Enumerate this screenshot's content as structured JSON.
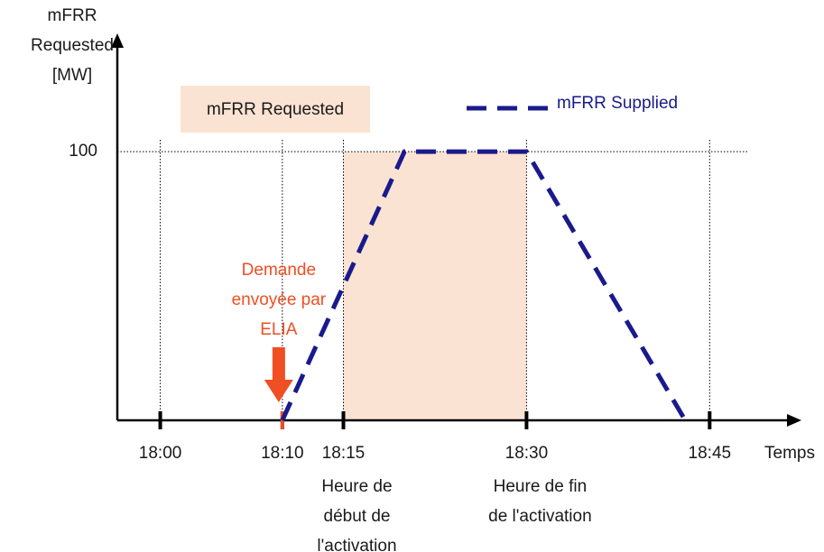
{
  "chart_data": {
    "type": "line",
    "x_label": "Temps",
    "y_label": [
      "mFRR",
      "Requested",
      "[MW]"
    ],
    "xlim": [
      "17:57",
      "18:52"
    ],
    "xticks": [
      "18:00",
      "18:10",
      "18:15",
      "18:30",
      "18:45"
    ],
    "ylim": [
      0,
      142
    ],
    "yticks": [
      100
    ],
    "grid": true,
    "series": [
      {
        "name": "mFRR Supplied",
        "color": "#1a1a8c",
        "x": [
          "18:10",
          "18:20",
          "18:30",
          "18:43"
        ],
        "values": [
          0,
          100,
          100,
          0
        ]
      }
    ],
    "band": {
      "name": "mFRR Requested",
      "color": "#fbe3d3",
      "x": [
        "18:15",
        "18:30"
      ],
      "value": 100
    },
    "annotations": [
      {
        "text": [
          "Demande",
          "envoyée par",
          "ELIA"
        ],
        "x": "18:10",
        "color": "#f04e23"
      },
      {
        "text": [
          "Heure de",
          "début de",
          "l'activation"
        ],
        "x": "18:15"
      },
      {
        "text": [
          "Heure de fin",
          "de l'activation"
        ],
        "x": "18:30"
      }
    ]
  }
}
